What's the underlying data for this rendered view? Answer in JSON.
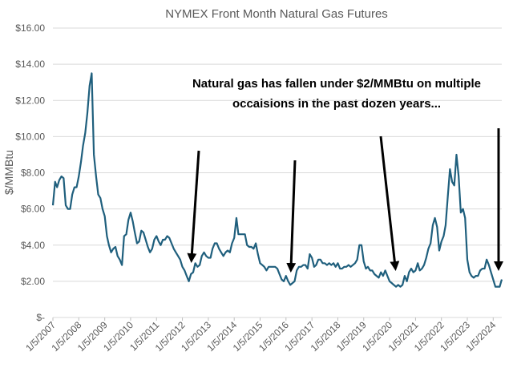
{
  "chart_data": {
    "type": "line",
    "title": "NYMEX Front Month Natural Gas Futures",
    "y_label": "$/MMBtu",
    "annotation": [
      "Natural gas has fallen under $2/MMBtu on multiple",
      "occaisions in the past dozen years..."
    ],
    "color": "#1f5f7d",
    "grid": true,
    "x": [
      "2007-01-05",
      "2007-02-05",
      "2007-03-05",
      "2007-04-05",
      "2007-05-05",
      "2007-06-05",
      "2007-07-05",
      "2007-08-05",
      "2007-09-05",
      "2007-10-05",
      "2007-11-05",
      "2007-12-05",
      "2008-01-05",
      "2008-02-05",
      "2008-03-05",
      "2008-04-05",
      "2008-05-05",
      "2008-06-05",
      "2008-07-05",
      "2008-08-05",
      "2008-09-05",
      "2008-10-05",
      "2008-11-05",
      "2008-12-05",
      "2009-01-05",
      "2009-02-05",
      "2009-03-05",
      "2009-04-05",
      "2009-05-05",
      "2009-06-05",
      "2009-07-05",
      "2009-08-05",
      "2009-09-05",
      "2009-10-05",
      "2009-11-05",
      "2009-12-05",
      "2010-01-05",
      "2010-02-05",
      "2010-03-05",
      "2010-04-05",
      "2010-05-05",
      "2010-06-05",
      "2010-07-05",
      "2010-08-05",
      "2010-09-05",
      "2010-10-05",
      "2010-11-05",
      "2010-12-05",
      "2011-01-05",
      "2011-02-05",
      "2011-03-05",
      "2011-04-05",
      "2011-05-05",
      "2011-06-05",
      "2011-07-05",
      "2011-08-05",
      "2011-09-05",
      "2011-10-05",
      "2011-11-05",
      "2011-12-05",
      "2012-01-05",
      "2012-02-05",
      "2012-03-05",
      "2012-04-05",
      "2012-05-05",
      "2012-06-05",
      "2012-07-05",
      "2012-08-05",
      "2012-09-05",
      "2012-10-05",
      "2012-11-05",
      "2012-12-05",
      "2013-01-05",
      "2013-02-05",
      "2013-03-05",
      "2013-04-05",
      "2013-05-05",
      "2013-06-05",
      "2013-07-05",
      "2013-08-05",
      "2013-09-05",
      "2013-10-05",
      "2013-11-05",
      "2013-12-05",
      "2014-01-05",
      "2014-02-05",
      "2014-03-05",
      "2014-04-05",
      "2014-05-05",
      "2014-06-05",
      "2014-07-05",
      "2014-08-05",
      "2014-09-05",
      "2014-10-05",
      "2014-11-05",
      "2014-12-05",
      "2015-01-05",
      "2015-02-05",
      "2015-03-05",
      "2015-04-05",
      "2015-05-05",
      "2015-06-05",
      "2015-07-05",
      "2015-08-05",
      "2015-09-05",
      "2015-10-05",
      "2015-11-05",
      "2015-12-05",
      "2016-01-05",
      "2016-02-05",
      "2016-03-05",
      "2016-04-05",
      "2016-05-05",
      "2016-06-05",
      "2016-07-05",
      "2016-08-05",
      "2016-09-05",
      "2016-10-05",
      "2016-11-05",
      "2016-12-05",
      "2017-01-05",
      "2017-02-05",
      "2017-03-05",
      "2017-04-05",
      "2017-05-05",
      "2017-06-05",
      "2017-07-05",
      "2017-08-05",
      "2017-09-05",
      "2017-10-05",
      "2017-11-05",
      "2017-12-05",
      "2018-01-05",
      "2018-02-05",
      "2018-03-05",
      "2018-04-05",
      "2018-05-05",
      "2018-06-05",
      "2018-07-05",
      "2018-08-05",
      "2018-09-05",
      "2018-10-05",
      "2018-11-05",
      "2018-12-05",
      "2019-01-05",
      "2019-02-05",
      "2019-03-05",
      "2019-04-05",
      "2019-05-05",
      "2019-06-05",
      "2019-07-05",
      "2019-08-05",
      "2019-09-05",
      "2019-10-05",
      "2019-11-05",
      "2019-12-05",
      "2020-01-05",
      "2020-02-05",
      "2020-03-05",
      "2020-04-05",
      "2020-05-05",
      "2020-06-05",
      "2020-07-05",
      "2020-08-05",
      "2020-09-05",
      "2020-10-05",
      "2020-11-05",
      "2020-12-05",
      "2021-01-05",
      "2021-02-05",
      "2021-03-05",
      "2021-04-05",
      "2021-05-05",
      "2021-06-05",
      "2021-07-05",
      "2021-08-05",
      "2021-09-05",
      "2021-10-05",
      "2021-11-05",
      "2021-12-05",
      "2022-01-05",
      "2022-02-05",
      "2022-03-05",
      "2022-04-05",
      "2022-05-05",
      "2022-06-05",
      "2022-07-05",
      "2022-08-05",
      "2022-09-05",
      "2022-10-05",
      "2022-11-05",
      "2022-12-05",
      "2023-01-05",
      "2023-02-05",
      "2023-03-05",
      "2023-04-05",
      "2023-05-05",
      "2023-06-05",
      "2023-07-05",
      "2023-08-05",
      "2023-09-05",
      "2023-10-05",
      "2023-11-05",
      "2023-12-05",
      "2024-01-05",
      "2024-02-05",
      "2024-03-05",
      "2024-04-05",
      "2024-05-05"
    ],
    "values": [
      6.2,
      7.5,
      7.2,
      7.6,
      7.8,
      7.7,
      6.2,
      6.0,
      6.0,
      6.8,
      7.2,
      7.2,
      7.8,
      8.6,
      9.5,
      10.2,
      11.3,
      12.8,
      13.5,
      9.0,
      7.8,
      6.8,
      6.6,
      6.0,
      5.6,
      4.5,
      4.0,
      3.6,
      3.8,
      3.9,
      3.4,
      3.2,
      2.9,
      4.5,
      4.6,
      5.4,
      5.8,
      5.3,
      4.7,
      4.1,
      4.2,
      4.8,
      4.7,
      4.3,
      3.9,
      3.6,
      3.8,
      4.3,
      4.5,
      4.2,
      4.0,
      4.3,
      4.3,
      4.5,
      4.4,
      4.1,
      3.8,
      3.6,
      3.4,
      3.2,
      2.8,
      2.6,
      2.3,
      2.0,
      2.4,
      2.5,
      3.0,
      2.8,
      2.9,
      3.4,
      3.6,
      3.4,
      3.3,
      3.3,
      3.8,
      4.1,
      4.1,
      3.8,
      3.6,
      3.4,
      3.6,
      3.7,
      3.6,
      4.1,
      4.4,
      5.5,
      4.6,
      4.6,
      4.6,
      4.6,
      4.0,
      3.9,
      3.9,
      3.8,
      4.1,
      3.5,
      3.0,
      2.9,
      2.8,
      2.6,
      2.8,
      2.8,
      2.8,
      2.8,
      2.7,
      2.4,
      2.1,
      2.0,
      2.3,
      2.0,
      1.8,
      1.9,
      2.0,
      2.6,
      2.8,
      2.8,
      2.9,
      2.9,
      2.7,
      3.5,
      3.3,
      2.8,
      2.9,
      3.2,
      3.2,
      3.0,
      3.0,
      2.9,
      3.0,
      2.9,
      3.0,
      2.8,
      3.0,
      2.7,
      2.7,
      2.8,
      2.8,
      2.9,
      2.8,
      2.9,
      3.0,
      3.2,
      4.0,
      4.0,
      3.1,
      2.7,
      2.8,
      2.6,
      2.6,
      2.4,
      2.3,
      2.2,
      2.5,
      2.3,
      2.6,
      2.3,
      2.0,
      1.9,
      1.8,
      1.7,
      1.8,
      1.7,
      1.8,
      2.3,
      2.0,
      2.5,
      2.7,
      2.5,
      2.6,
      3.0,
      2.6,
      2.7,
      2.9,
      3.3,
      3.8,
      4.1,
      5.1,
      5.5,
      5.0,
      3.7,
      4.2,
      4.5,
      5.1,
      6.7,
      8.2,
      7.5,
      7.3,
      9.0,
      7.8,
      5.8,
      6.0,
      5.5,
      3.2,
      2.5,
      2.3,
      2.2,
      2.3,
      2.3,
      2.6,
      2.7,
      2.7,
      3.2,
      2.9,
      2.5,
      2.1,
      1.7,
      1.7,
      1.7,
      2.1
    ],
    "xlim": [
      "2007-01-05",
      "2024-05-05"
    ],
    "xticks": [
      {
        "value": "2007-01-05",
        "label": "1/5/2007"
      },
      {
        "value": "2008-01-05",
        "label": "1/5/2008"
      },
      {
        "value": "2009-01-05",
        "label": "1/5/2009"
      },
      {
        "value": "2010-01-05",
        "label": "1/5/2010"
      },
      {
        "value": "2011-01-05",
        "label": "1/5/2011"
      },
      {
        "value": "2012-01-05",
        "label": "1/5/2012"
      },
      {
        "value": "2013-01-05",
        "label": "1/5/2013"
      },
      {
        "value": "2014-01-05",
        "label": "1/5/2014"
      },
      {
        "value": "2015-01-05",
        "label": "1/5/2015"
      },
      {
        "value": "2016-01-05",
        "label": "1/5/2016"
      },
      {
        "value": "2017-01-05",
        "label": "1/5/2017"
      },
      {
        "value": "2018-01-05",
        "label": "1/5/2018"
      },
      {
        "value": "2019-01-05",
        "label": "1/5/2019"
      },
      {
        "value": "2020-01-05",
        "label": "1/5/2020"
      },
      {
        "value": "2021-01-05",
        "label": "1/5/2021"
      },
      {
        "value": "2022-01-05",
        "label": "1/5/2022"
      },
      {
        "value": "2023-01-05",
        "label": "1/5/2023"
      },
      {
        "value": "2024-01-05",
        "label": "1/5/2024"
      }
    ],
    "ylim": [
      0,
      16
    ],
    "yticks": [
      {
        "value": 0,
        "label": "$-"
      },
      {
        "value": 2,
        "label": "$2.00"
      },
      {
        "value": 4,
        "label": "$4.00"
      },
      {
        "value": 6,
        "label": "$6.00"
      },
      {
        "value": 8,
        "label": "$8.00"
      },
      {
        "value": 10,
        "label": "$10.00"
      },
      {
        "value": 12,
        "label": "$12.00"
      },
      {
        "value": 14,
        "label": "$14.00"
      },
      {
        "value": 16,
        "label": "$16.00"
      }
    ]
  }
}
